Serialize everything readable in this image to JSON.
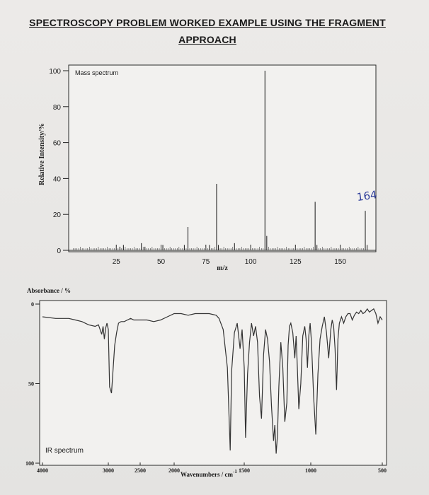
{
  "title": {
    "line1": "SPECTROSCOPY PROBLEM WORKED EXAMPLE USING THE FRAGMENT",
    "line2": "APPROACH"
  },
  "chart_data": [
    {
      "type": "bar",
      "label": "Mass spectrum",
      "xlabel": "m/z",
      "ylabel": "Relative Intensity/%",
      "xlim": [
        0,
        164
      ],
      "ylim": [
        0,
        100
      ],
      "x_ticks": [
        25,
        50,
        75,
        100,
        125,
        150
      ],
      "y_ticks": [
        0,
        20,
        40,
        60,
        80,
        100
      ],
      "annotation": "164",
      "peaks": [
        {
          "mz": 27,
          "intensity": 2
        },
        {
          "mz": 29,
          "intensity": 3
        },
        {
          "mz": 39,
          "intensity": 4
        },
        {
          "mz": 41,
          "intensity": 2
        },
        {
          "mz": 51,
          "intensity": 3
        },
        {
          "mz": 63,
          "intensity": 3
        },
        {
          "mz": 65,
          "intensity": 13
        },
        {
          "mz": 77,
          "intensity": 3
        },
        {
          "mz": 81,
          "intensity": 37
        },
        {
          "mz": 82,
          "intensity": 3
        },
        {
          "mz": 91,
          "intensity": 4
        },
        {
          "mz": 108,
          "intensity": 100
        },
        {
          "mz": 109,
          "intensity": 8
        },
        {
          "mz": 136,
          "intensity": 27
        },
        {
          "mz": 137,
          "intensity": 3
        },
        {
          "mz": 164,
          "intensity": 22
        },
        {
          "mz": 165,
          "intensity": 3
        }
      ]
    },
    {
      "type": "line",
      "label": "IR spectrum",
      "xlabel": "Wavenumbers / cm",
      "xlabel_sup": "-1",
      "ylabel": "Absorbance / %",
      "xlim": [
        4000,
        500
      ],
      "ylim": [
        0,
        100
      ],
      "x_tick_labels": [
        "4000",
        "3000",
        "2500",
        "2000",
        "1500",
        "1000",
        "500"
      ],
      "y_tick_labels": [
        "0",
        "50",
        "100"
      ],
      "x_ticks": [
        4000,
        3000,
        2500,
        2000,
        1500,
        1000,
        500
      ],
      "y_ticks": [
        0,
        50,
        100
      ],
      "series": [
        {
          "x": [
            4000,
            3800,
            3600,
            3500,
            3400,
            3300,
            3200,
            3150,
            3100,
            3080,
            3060,
            3040,
            3020,
            3000,
            2980,
            2950,
            2900,
            2870,
            2840,
            2800,
            2750,
            2700,
            2650,
            2600,
            2500,
            2400,
            2300,
            2200,
            2100,
            2000,
            1950,
            1900,
            1850,
            1800,
            1750,
            1700,
            1680,
            1650,
            1620,
            1610,
            1600,
            1590,
            1570,
            1550,
            1530,
            1515,
            1500,
            1490,
            1475,
            1460,
            1445,
            1430,
            1415,
            1400,
            1385,
            1370,
            1355,
            1340,
            1325,
            1310,
            1295,
            1280,
            1270,
            1260,
            1250,
            1240,
            1225,
            1210,
            1195,
            1180,
            1170,
            1160,
            1150,
            1135,
            1120,
            1110,
            1100,
            1090,
            1075,
            1060,
            1045,
            1035,
            1025,
            1015,
            1005,
            995,
            980,
            965,
            950,
            935,
            920,
            905,
            890,
            875,
            860,
            850,
            840,
            830,
            820,
            810,
            800,
            785,
            770,
            755,
            740,
            725,
            710,
            695,
            680,
            665,
            650,
            635,
            620,
            605,
            590,
            575,
            560,
            545,
            530,
            515,
            500
          ],
          "y": [
            8,
            9,
            9,
            10,
            11,
            13,
            14,
            13,
            19,
            14,
            22,
            15,
            12,
            16,
            52,
            56,
            26,
            18,
            12,
            11,
            11,
            10,
            9,
            10,
            10,
            10,
            11,
            10,
            8,
            6,
            6,
            7,
            6,
            6,
            6,
            7,
            9,
            16,
            40,
            66,
            92,
            42,
            18,
            12,
            28,
            16,
            40,
            84,
            44,
            24,
            12,
            20,
            14,
            24,
            58,
            72,
            32,
            16,
            22,
            36,
            64,
            86,
            76,
            94,
            82,
            52,
            24,
            40,
            74,
            62,
            26,
            14,
            12,
            18,
            34,
            20,
            42,
            66,
            50,
            20,
            14,
            22,
            40,
            20,
            12,
            24,
            58,
            82,
            44,
            22,
            14,
            8,
            18,
            34,
            16,
            10,
            14,
            28,
            54,
            22,
            12,
            8,
            12,
            8,
            6,
            6,
            10,
            7,
            5,
            6,
            4,
            6,
            5,
            3,
            5,
            4,
            3,
            6,
            12,
            8,
            10
          ]
        }
      ]
    }
  ]
}
